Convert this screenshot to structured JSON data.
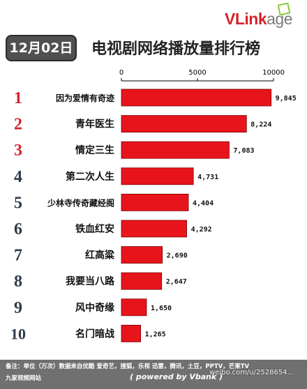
{
  "brand": {
    "logo_prefix": "VLink",
    "logo_suffix": "age",
    "accent_color": "#d4232b"
  },
  "header": {
    "date_badge": "12月02日",
    "title": "电视剧网络播放量排行榜"
  },
  "chart_data": {
    "type": "bar",
    "orientation": "horizontal",
    "title": "电视剧网络播放量排行榜",
    "xlabel": "",
    "ylabel": "",
    "xlim": [
      0,
      10000
    ],
    "x_ticks": [
      "0",
      "5000",
      "10000"
    ],
    "grid": false,
    "bar_color": "#e8141c",
    "ranks": [
      "1",
      "2",
      "3",
      "4",
      "5",
      "6",
      "7",
      "8",
      "9",
      "10"
    ],
    "categories": [
      "因为爱情有奇迹",
      "青年医生",
      "情定三生",
      "第二次人生",
      "少林寺传奇藏经阁",
      "铁血红安",
      "红高粱",
      "我要当八路",
      "风中奇缘",
      "名门暗战"
    ],
    "values": [
      9845,
      8224,
      7083,
      4731,
      4404,
      4292,
      2690,
      2647,
      1650,
      1265
    ],
    "value_labels": [
      "9,845",
      "8,224",
      "7,083",
      "4,731",
      "4,404",
      "4,292",
      "2,690",
      "2,647",
      "1,650",
      "1,265"
    ],
    "rank_colors": [
      "#d4232b",
      "#d4232b",
      "#d4232b",
      "#2f3b4c",
      "#2f3b4c",
      "#2f3b4c",
      "#2f3b4c",
      "#2f3b4c",
      "#2f3b4c",
      "#2f3b4c"
    ]
  },
  "footer": {
    "note": "备注：单位（万次）数据来自优酷 爱奇艺，搜狐，乐视  迅雷，腾讯，土豆，PPTV，芒果TV",
    "sources": "九家视频网站",
    "powered": "( powered by Vbank )"
  },
  "watermark": "weibo.com/u/2528654..."
}
